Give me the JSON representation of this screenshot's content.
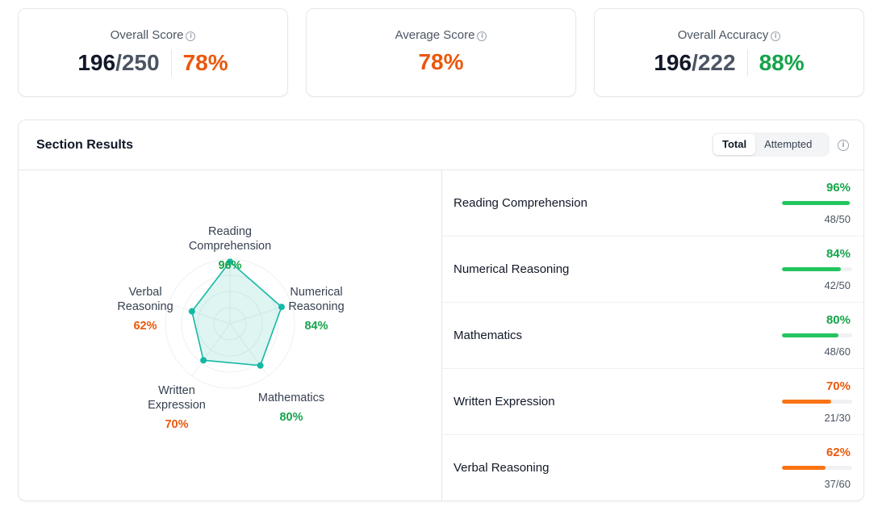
{
  "summary": {
    "overall_score": {
      "label": "Overall Score",
      "value": "196",
      "total": "250",
      "percent": "78%"
    },
    "average_score": {
      "label": "Average Score",
      "percent": "78%"
    },
    "overall_accuracy": {
      "label": "Overall Accuracy",
      "value": "196",
      "total": "222",
      "percent": "88%"
    }
  },
  "section": {
    "title": "Section Results",
    "toggle": {
      "total": "Total",
      "attempted": "Attempted",
      "selected": "Total"
    }
  },
  "colors": {
    "green": "#16a34a",
    "orange": "#ea580c",
    "bar_green": "#22c55e",
    "bar_orange": "#f97316",
    "radar": "#14b8a6"
  },
  "results": [
    {
      "name": "Reading Comprehension",
      "radar_label": [
        "Reading",
        "Comprehension"
      ],
      "percent_label": "96%",
      "percent": 96,
      "count": "48/50",
      "status": "green"
    },
    {
      "name": "Numerical Reasoning",
      "radar_label": [
        "Numerical",
        "Reasoning"
      ],
      "percent_label": "84%",
      "percent": 84,
      "count": "42/50",
      "status": "green"
    },
    {
      "name": "Mathematics",
      "radar_label": [
        "Mathematics"
      ],
      "percent_label": "80%",
      "percent": 80,
      "count": "48/60",
      "status": "green"
    },
    {
      "name": "Written Expression",
      "radar_label": [
        "Written",
        "Expression"
      ],
      "percent_label": "70%",
      "percent": 70,
      "count": "21/30",
      "status": "orange"
    },
    {
      "name": "Verbal Reasoning",
      "radar_label": [
        "Verbal",
        "Reasoning"
      ],
      "percent_label": "62%",
      "percent": 62,
      "count": "37/60",
      "status": "orange"
    }
  ]
}
